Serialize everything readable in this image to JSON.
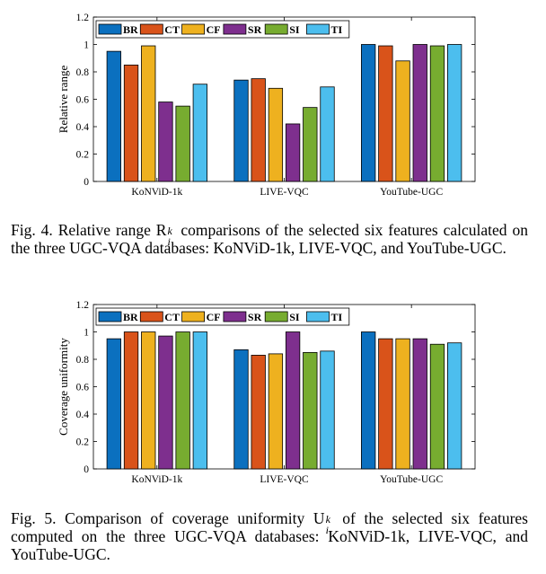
{
  "colors": {
    "BR": "#0b70bf",
    "CT": "#d9531a",
    "CF": "#eeb11f",
    "SR": "#7e2f8e",
    "SI": "#77ac30",
    "TI": "#4cbeee"
  },
  "chart_data": [
    {
      "type": "bar",
      "categories": [
        "KoNViD-1k",
        "LIVE-VQC",
        "YouTube-UGC"
      ],
      "series": [
        {
          "name": "BR",
          "values": [
            0.95,
            0.74,
            1.0
          ]
        },
        {
          "name": "CT",
          "values": [
            0.85,
            0.75,
            0.99
          ]
        },
        {
          "name": "CF",
          "values": [
            0.99,
            0.68,
            0.88
          ]
        },
        {
          "name": "SR",
          "values": [
            0.58,
            0.42,
            1.0
          ]
        },
        {
          "name": "SI",
          "values": [
            0.55,
            0.54,
            0.99
          ]
        },
        {
          "name": "TI",
          "values": [
            0.71,
            0.69,
            1.0
          ]
        }
      ],
      "ylabel": "Relative range",
      "ylim": [
        0,
        1.2
      ],
      "yticks": [
        "0",
        "0.2",
        "0.4",
        "0.6",
        "0.8",
        "1",
        "1.2"
      ],
      "legend_position": "top-left",
      "grid": false
    },
    {
      "type": "bar",
      "categories": [
        "KoNViD-1k",
        "LIVE-VQC",
        "YouTube-UGC"
      ],
      "series": [
        {
          "name": "BR",
          "values": [
            0.95,
            0.87,
            1.0
          ]
        },
        {
          "name": "CT",
          "values": [
            1.0,
            0.83,
            0.95
          ]
        },
        {
          "name": "CF",
          "values": [
            1.0,
            0.84,
            0.95
          ]
        },
        {
          "name": "SR",
          "values": [
            0.97,
            1.0,
            0.95
          ]
        },
        {
          "name": "SI",
          "values": [
            1.0,
            0.85,
            0.91
          ]
        },
        {
          "name": "TI",
          "values": [
            1.0,
            0.86,
            0.92
          ]
        }
      ],
      "ylabel": "Coverage uniformity",
      "ylim": [
        0,
        1.2
      ],
      "yticks": [
        "0",
        "0.2",
        "0.4",
        "0.6",
        "0.8",
        "1",
        "1.2"
      ],
      "legend_position": "top-left",
      "grid": false
    }
  ],
  "captions": {
    "fig4": {
      "pre": "Fig. 4.  Relative range R",
      "sup": "k",
      "sub": "i",
      "post": " comparisons of the selected six features calculated on the three UGC-VQA databases: KoNViD-1k, LIVE-VQC, and YouTube-UGC."
    },
    "fig5": {
      "pre": "Fig. 5.  Comparison of coverage uniformity U",
      "sup": "k",
      "sub": "i",
      "post": " of the selected six features computed on the three UGC-VQA databases: KoNViD-1k, LIVE-VQC, and YouTube-UGC."
    }
  }
}
